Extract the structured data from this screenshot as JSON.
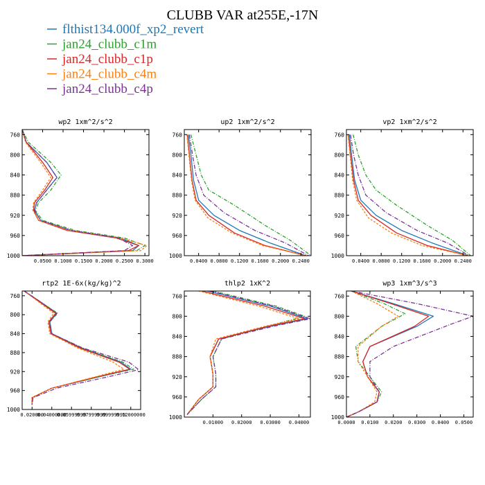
{
  "figure": {
    "title": "CLUBB VAR at255E,-17N",
    "legend": [
      {
        "name": "flthist134.000f_xp2_revert",
        "color": "#1f77b4"
      },
      {
        "name": "jan24_clubb_c1m",
        "color": "#2ca02c"
      },
      {
        "name": "jan24_clubb_c1p",
        "color": "#d62728"
      },
      {
        "name": "jan24_clubb_c4m",
        "color": "#ff7f0e"
      },
      {
        "name": "jan24_clubb_c4p",
        "color": "#7b3294"
      }
    ]
  },
  "chart_data": [
    {
      "type": "line",
      "title": "wp2  1xm^2/s^2",
      "xlim": [
        0,
        0.31
      ],
      "ylim": [
        1000,
        750
      ],
      "xticks": [
        0.05,
        0.1,
        0.15,
        0.2,
        0.25,
        0.3
      ],
      "xtick_labels": [
        "0.0500",
        "0.1000",
        "0.1500",
        "0.2000",
        "0.2500",
        "0.3000"
      ],
      "yticks": [
        760,
        800,
        840,
        880,
        920,
        960,
        1000
      ],
      "series": [
        {
          "color": "#1f77b4",
          "x": [
            0.0,
            0.01,
            0.06,
            0.085,
            0.06,
            0.035,
            0.03,
            0.045,
            0.12,
            0.24,
            0.285,
            0.27,
            0.0
          ],
          "y": [
            750,
            775,
            815,
            845,
            870,
            895,
            910,
            930,
            950,
            965,
            980,
            990,
            1000
          ]
        },
        {
          "color": "#2ca02c",
          "x": [
            0.0,
            0.015,
            0.07,
            0.095,
            0.07,
            0.04,
            0.032,
            0.05,
            0.13,
            0.25,
            0.3,
            0.28,
            0.0
          ],
          "y": [
            750,
            775,
            815,
            840,
            870,
            895,
            910,
            930,
            950,
            965,
            980,
            990,
            1000
          ]
        },
        {
          "color": "#d62728",
          "x": [
            0.0,
            0.01,
            0.05,
            0.075,
            0.055,
            0.03,
            0.028,
            0.04,
            0.11,
            0.23,
            0.285,
            0.26,
            0.0
          ],
          "y": [
            750,
            775,
            815,
            845,
            870,
            895,
            910,
            930,
            950,
            965,
            980,
            990,
            1000
          ]
        },
        {
          "color": "#ff7f0e",
          "x": [
            0.0,
            0.008,
            0.045,
            0.07,
            0.05,
            0.028,
            0.026,
            0.04,
            0.115,
            0.24,
            0.305,
            0.29,
            0.0
          ],
          "y": [
            750,
            775,
            815,
            845,
            870,
            895,
            910,
            930,
            950,
            965,
            980,
            990,
            1000
          ]
        },
        {
          "color": "#7b3294",
          "x": [
            0.0,
            0.01,
            0.06,
            0.085,
            0.06,
            0.035,
            0.03,
            0.045,
            0.12,
            0.235,
            0.27,
            0.25,
            0.0
          ],
          "y": [
            750,
            775,
            815,
            845,
            870,
            895,
            910,
            930,
            950,
            965,
            980,
            990,
            1000
          ]
        }
      ]
    },
    {
      "type": "line",
      "title": "up2  1xm^2/s^2",
      "xlim": [
        0.012,
        0.26
      ],
      "ylim": [
        1000,
        750
      ],
      "xticks": [
        0.04,
        0.08,
        0.12,
        0.16,
        0.2,
        0.24
      ],
      "xtick_labels": [
        "0.0400",
        "0.0800",
        "0.1200",
        "0.1600",
        "0.2000",
        "0.2400"
      ],
      "yticks": [
        760,
        800,
        840,
        880,
        920,
        960,
        1000
      ],
      "series": [
        {
          "color": "#1f77b4",
          "x": [
            0.02,
            0.025,
            0.03,
            0.04,
            0.07,
            0.12,
            0.18,
            0.25
          ],
          "y": [
            760,
            800,
            850,
            890,
            920,
            950,
            975,
            1000
          ]
        },
        {
          "color": "#2ca02c",
          "x": [
            0.025,
            0.035,
            0.045,
            0.06,
            0.11,
            0.17,
            0.22,
            0.26
          ],
          "y": [
            760,
            800,
            840,
            870,
            900,
            940,
            970,
            1000
          ]
        },
        {
          "color": "#d62728",
          "x": [
            0.018,
            0.022,
            0.027,
            0.035,
            0.06,
            0.11,
            0.17,
            0.25
          ],
          "y": [
            760,
            800,
            850,
            890,
            920,
            955,
            980,
            1000
          ]
        },
        {
          "color": "#ff7f0e",
          "x": [
            0.017,
            0.021,
            0.026,
            0.033,
            0.058,
            0.105,
            0.165,
            0.25
          ],
          "y": [
            760,
            800,
            850,
            890,
            925,
            955,
            980,
            1000
          ]
        },
        {
          "color": "#7b3294",
          "x": [
            0.022,
            0.028,
            0.035,
            0.05,
            0.09,
            0.15,
            0.21,
            0.255
          ],
          "y": [
            760,
            800,
            840,
            880,
            915,
            950,
            975,
            1000
          ]
        }
      ]
    },
    {
      "type": "line",
      "title": "vp2  1xm^2/s^2",
      "xlim": [
        0.012,
        0.26
      ],
      "ylim": [
        1000,
        750
      ],
      "xticks": [
        0.04,
        0.08,
        0.12,
        0.16,
        0.2,
        0.24
      ],
      "xtick_labels": [
        "0.0400",
        "0.0800",
        "0.1200",
        "0.1600",
        "0.2000",
        "0.2400"
      ],
      "yticks": [
        760,
        800,
        840,
        880,
        920,
        960,
        1000
      ],
      "series": [
        {
          "color": "#1f77b4",
          "x": [
            0.018,
            0.022,
            0.028,
            0.04,
            0.07,
            0.12,
            0.18,
            0.25
          ],
          "y": [
            760,
            800,
            850,
            890,
            920,
            950,
            975,
            1000
          ]
        },
        {
          "color": "#2ca02c",
          "x": [
            0.025,
            0.035,
            0.05,
            0.07,
            0.11,
            0.17,
            0.22,
            0.255
          ],
          "y": [
            760,
            800,
            840,
            870,
            900,
            940,
            970,
            1000
          ]
        },
        {
          "color": "#d62728",
          "x": [
            0.016,
            0.02,
            0.026,
            0.035,
            0.06,
            0.11,
            0.17,
            0.25
          ],
          "y": [
            760,
            800,
            850,
            890,
            920,
            955,
            980,
            1000
          ]
        },
        {
          "color": "#ff7f0e",
          "x": [
            0.015,
            0.019,
            0.024,
            0.032,
            0.055,
            0.1,
            0.16,
            0.25
          ],
          "y": [
            760,
            800,
            850,
            890,
            925,
            955,
            980,
            1000
          ]
        },
        {
          "color": "#7b3294",
          "x": [
            0.02,
            0.026,
            0.035,
            0.05,
            0.09,
            0.15,
            0.21,
            0.252
          ],
          "y": [
            760,
            800,
            840,
            880,
            915,
            950,
            975,
            1000
          ]
        }
      ]
    },
    {
      "type": "line",
      "title": "rtp2  1E-6x(kg/kg)^2",
      "xlim": [
        0.01,
        0.13
      ],
      "ylim": [
        1000,
        750
      ],
      "xticks": [
        0.02,
        0.04,
        0.06,
        0.08,
        0.1,
        0.12
      ],
      "xtick_labels": [
        "0.020000",
        "0.04000000",
        "0.05999999",
        "0.07999999",
        "0.09999999",
        "0.12000000"
      ],
      "yticks": [
        760,
        800,
        840,
        880,
        920,
        960,
        1000
      ],
      "series": [
        {
          "color": "#1f77b4",
          "x": [
            0.012,
            0.03,
            0.045,
            0.038,
            0.04,
            0.07,
            0.11,
            0.12,
            0.09,
            0.04,
            0.02,
            0.02
          ],
          "y": [
            750,
            775,
            797,
            815,
            840,
            870,
            900,
            915,
            930,
            955,
            975,
            990
          ]
        },
        {
          "color": "#2ca02c",
          "x": [
            0.012,
            0.03,
            0.046,
            0.038,
            0.04,
            0.07,
            0.112,
            0.123,
            0.09,
            0.04,
            0.02,
            0.02
          ],
          "y": [
            750,
            775,
            797,
            815,
            840,
            870,
            900,
            915,
            930,
            955,
            975,
            990
          ]
        },
        {
          "color": "#d62728",
          "x": [
            0.012,
            0.029,
            0.044,
            0.037,
            0.039,
            0.068,
            0.108,
            0.119,
            0.088,
            0.04,
            0.02,
            0.02
          ],
          "y": [
            750,
            775,
            797,
            815,
            840,
            870,
            900,
            915,
            930,
            955,
            975,
            990
          ]
        },
        {
          "color": "#ff7f0e",
          "x": [
            0.012,
            0.028,
            0.042,
            0.036,
            0.038,
            0.066,
            0.102,
            0.113,
            0.086,
            0.04,
            0.02,
            0.02
          ],
          "y": [
            750,
            775,
            797,
            815,
            840,
            870,
            900,
            915,
            930,
            955,
            975,
            990
          ]
        },
        {
          "color": "#7b3294",
          "x": [
            0.012,
            0.03,
            0.045,
            0.038,
            0.04,
            0.071,
            0.118,
            0.128,
            0.095,
            0.045,
            0.021,
            0.02
          ],
          "y": [
            750,
            775,
            797,
            815,
            840,
            870,
            900,
            916,
            932,
            955,
            975,
            990
          ]
        }
      ]
    },
    {
      "type": "line",
      "title": "thlp2  1xK^2",
      "xlim": [
        0.0,
        0.044
      ],
      "ylim": [
        1000,
        750
      ],
      "xticks": [
        0.01,
        0.02,
        0.03,
        0.04
      ],
      "xtick_labels": [
        "0.01000",
        "0.02000",
        "0.03000",
        "0.04000"
      ],
      "yticks": [
        760,
        800,
        840,
        880,
        920,
        960,
        1000
      ],
      "series": [
        {
          "color": "#1f77b4",
          "x": [
            0.008,
            0.03,
            0.043,
            0.03,
            0.012,
            0.009,
            0.01,
            0.01,
            0.005,
            0.001
          ],
          "y": [
            750,
            780,
            805,
            820,
            845,
            880,
            915,
            940,
            965,
            995
          ]
        },
        {
          "color": "#2ca02c",
          "x": [
            0.01,
            0.032,
            0.042,
            0.029,
            0.013,
            0.01,
            0.011,
            0.011,
            0.006,
            0.001
          ],
          "y": [
            750,
            780,
            800,
            820,
            845,
            880,
            915,
            940,
            965,
            995
          ]
        },
        {
          "color": "#d62728",
          "x": [
            0.006,
            0.028,
            0.042,
            0.029,
            0.012,
            0.009,
            0.01,
            0.01,
            0.005,
            0.001
          ],
          "y": [
            750,
            780,
            805,
            820,
            845,
            880,
            915,
            940,
            965,
            995
          ]
        },
        {
          "color": "#ff7f0e",
          "x": [
            0.005,
            0.026,
            0.04,
            0.028,
            0.011,
            0.009,
            0.01,
            0.01,
            0.005,
            0.001
          ],
          "y": [
            750,
            780,
            805,
            820,
            845,
            880,
            915,
            940,
            965,
            995
          ]
        },
        {
          "color": "#7b3294",
          "x": [
            0.009,
            0.031,
            0.044,
            0.031,
            0.013,
            0.01,
            0.011,
            0.011,
            0.006,
            0.001
          ],
          "y": [
            750,
            780,
            805,
            820,
            845,
            880,
            915,
            940,
            965,
            995
          ]
        }
      ]
    },
    {
      "type": "line",
      "title": "wp3  1xm^3/s^3",
      "xlim": [
        0.0,
        0.054
      ],
      "ylim": [
        1000,
        750
      ],
      "xticks": [
        0.0,
        0.01,
        0.02,
        0.03,
        0.04,
        0.05
      ],
      "xtick_labels": [
        "0.0000",
        "0.0100",
        "0.0200",
        "0.0300",
        "0.0400",
        "0.0500"
      ],
      "yticks": [
        760,
        800,
        840,
        880,
        920,
        960,
        1000
      ],
      "series": [
        {
          "color": "#1f77b4",
          "x": [
            0.002,
            0.02,
            0.037,
            0.03,
            0.01,
            0.007,
            0.009,
            0.014,
            0.013,
            0.005,
            0.0
          ],
          "y": [
            750,
            775,
            800,
            820,
            860,
            890,
            920,
            950,
            970,
            990,
            1000
          ]
        },
        {
          "color": "#2ca02c",
          "x": [
            0.002,
            0.016,
            0.025,
            0.015,
            0.004,
            0.005,
            0.01,
            0.015,
            0.013,
            0.005,
            0.0
          ],
          "y": [
            750,
            775,
            795,
            820,
            860,
            890,
            920,
            950,
            970,
            990,
            1000
          ]
        },
        {
          "color": "#d62728",
          "x": [
            0.002,
            0.019,
            0.035,
            0.029,
            0.01,
            0.007,
            0.009,
            0.014,
            0.013,
            0.005,
            0.0
          ],
          "y": [
            750,
            775,
            800,
            820,
            860,
            890,
            920,
            950,
            970,
            990,
            1000
          ]
        },
        {
          "color": "#ff7f0e",
          "x": [
            0.002,
            0.013,
            0.022,
            0.015,
            0.005,
            0.005,
            0.009,
            0.013,
            0.012,
            0.005,
            0.0
          ],
          "y": [
            750,
            775,
            800,
            820,
            860,
            890,
            920,
            950,
            970,
            990,
            1000
          ]
        },
        {
          "color": "#7b3294",
          "x": [
            0.002,
            0.03,
            0.054,
            0.045,
            0.02,
            0.01,
            0.01,
            0.014,
            0.013,
            0.005,
            0.0
          ],
          "y": [
            750,
            775,
            800,
            815,
            860,
            890,
            920,
            950,
            970,
            990,
            1000
          ]
        }
      ]
    }
  ]
}
